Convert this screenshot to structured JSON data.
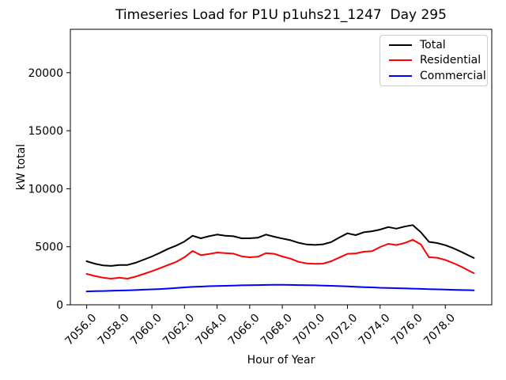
{
  "figure": {
    "title": "Timeseries Load for P1U p1uhs21_1247  Day 295",
    "xlabel": "Hour of Year",
    "ylabel": "kW total",
    "background_color": "#ffffff",
    "axes_color": "#000000"
  },
  "legend": {
    "position": "upper right",
    "entries": [
      "Total",
      "Residential",
      "Commercial"
    ]
  },
  "chart_data": {
    "type": "line",
    "title": "Timeseries Load for P1U p1uhs21_1247  Day 295",
    "xlabel": "Hour of Year",
    "ylabel": "kW total",
    "grid": false,
    "legend_position": "upper right",
    "xlim": [
      7055.0,
      7080.85
    ],
    "ylim": [
      0,
      23740
    ],
    "x_ticks": [
      7056,
      7058,
      7060,
      7062,
      7064,
      7066,
      7068,
      7070,
      7072,
      7074,
      7076,
      7078
    ],
    "x_tick_labels": [
      "7056.0",
      "7058.0",
      "7060.0",
      "7062.0",
      "7064.0",
      "7066.0",
      "7068.0",
      "7070.0",
      "7072.0",
      "7074.0",
      "7076.0",
      "7078.0"
    ],
    "x_tick_rotation": 45,
    "y_ticks": [
      0,
      5000,
      10000,
      15000,
      20000
    ],
    "y_tick_labels": [
      "0",
      "5000",
      "10000",
      "15000",
      "20000"
    ],
    "x": [
      7056.0,
      7056.5,
      7057.0,
      7057.5,
      7058.0,
      7058.5,
      7059.0,
      7059.5,
      7060.0,
      7060.5,
      7061.0,
      7061.5,
      7062.0,
      7062.5,
      7063.0,
      7063.5,
      7064.0,
      7064.5,
      7065.0,
      7065.5,
      7066.0,
      7066.5,
      7067.0,
      7067.5,
      7068.0,
      7068.5,
      7069.0,
      7069.5,
      7070.0,
      7070.5,
      7071.0,
      7071.5,
      7072.0,
      7072.5,
      7073.0,
      7073.5,
      7074.0,
      7074.5,
      7075.0,
      7075.5,
      7076.0,
      7076.5,
      7077.0,
      7077.5,
      7078.0,
      7078.5,
      7079.0,
      7079.5,
      7079.75
    ],
    "series": [
      {
        "name": "Total",
        "color": "#000000",
        "values": [
          3750,
          3540,
          3400,
          3350,
          3430,
          3430,
          3620,
          3890,
          4160,
          4480,
          4820,
          5100,
          5450,
          5950,
          5730,
          5910,
          6050,
          5950,
          5910,
          5730,
          5730,
          5780,
          6050,
          5870,
          5710,
          5570,
          5340,
          5200,
          5160,
          5210,
          5400,
          5800,
          6160,
          6000,
          6250,
          6340,
          6480,
          6700,
          6560,
          6740,
          6870,
          6250,
          5420,
          5320,
          5140,
          4870,
          4550,
          4200,
          4040
        ]
      },
      {
        "name": "Residential",
        "color": "#ff0000",
        "values": [
          2660,
          2480,
          2340,
          2250,
          2340,
          2250,
          2430,
          2660,
          2890,
          3160,
          3430,
          3700,
          4100,
          4640,
          4280,
          4370,
          4500,
          4450,
          4410,
          4180,
          4090,
          4140,
          4450,
          4390,
          4160,
          3980,
          3700,
          3570,
          3530,
          3550,
          3750,
          4070,
          4390,
          4430,
          4570,
          4620,
          4980,
          5250,
          5150,
          5320,
          5600,
          5200,
          4100,
          4050,
          3870,
          3590,
          3270,
          2900,
          2730
        ]
      },
      {
        "name": "Commercial",
        "color": "#0000ff",
        "values": [
          1150,
          1170,
          1190,
          1210,
          1230,
          1250,
          1270,
          1300,
          1330,
          1360,
          1400,
          1450,
          1500,
          1540,
          1570,
          1600,
          1620,
          1640,
          1660,
          1680,
          1690,
          1700,
          1710,
          1720,
          1720,
          1710,
          1700,
          1690,
          1680,
          1660,
          1640,
          1610,
          1580,
          1550,
          1520,
          1500,
          1470,
          1450,
          1430,
          1410,
          1390,
          1370,
          1350,
          1330,
          1310,
          1290,
          1270,
          1260,
          1250
        ]
      }
    ]
  }
}
